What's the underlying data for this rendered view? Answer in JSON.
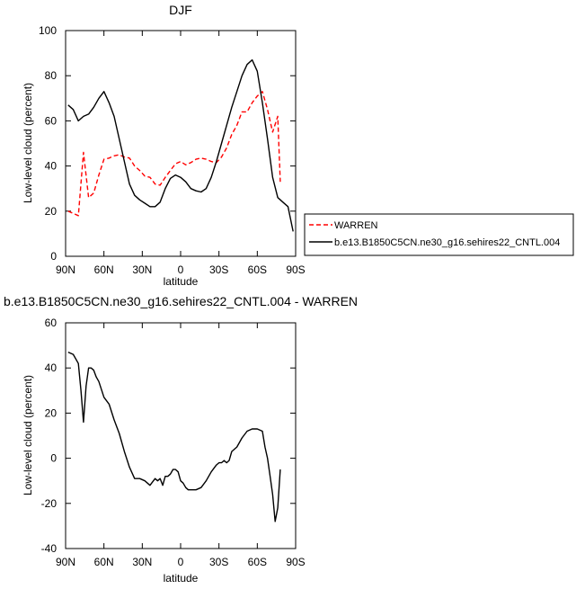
{
  "chart_data": [
    {
      "type": "line",
      "title": "DJF",
      "xlabel": "latitude",
      "ylabel": "Low-level cloud (percent)",
      "xlim": [
        90,
        -90
      ],
      "ylim": [
        0,
        100
      ],
      "x_ticks": [
        90,
        60,
        30,
        0,
        -30,
        -60,
        -90
      ],
      "x_tick_labels": [
        "90N",
        "60N",
        "30N",
        "0",
        "30S",
        "60S",
        "90S"
      ],
      "y_ticks": [
        0,
        20,
        40,
        60,
        80,
        100
      ],
      "y_tick_labels": [
        "0",
        "20",
        "40",
        "60",
        "80",
        "100"
      ],
      "grid": false,
      "legend_position": "right of plot",
      "series": [
        {
          "name": "WARREN",
          "color": "#ff0000",
          "dash": "dashed",
          "x": [
            88,
            84,
            80,
            76,
            72,
            68,
            64,
            60,
            56,
            52,
            48,
            44,
            40,
            36,
            32,
            28,
            24,
            20,
            16,
            12,
            8,
            4,
            0,
            -4,
            -8,
            -12,
            -16,
            -20,
            -24,
            -28,
            -32,
            -36,
            -40,
            -44,
            -48,
            -52,
            -56,
            -60,
            -64,
            -68,
            -72,
            -76,
            -78
          ],
          "values": [
            20,
            19,
            18,
            46,
            26,
            28,
            36,
            43,
            43.5,
            44.5,
            45,
            44,
            43.5,
            40,
            38,
            35.5,
            35,
            32,
            31.5,
            35,
            38,
            41,
            42,
            40.5,
            41.5,
            43,
            43.5,
            43,
            42,
            41.5,
            44,
            48,
            54,
            58,
            64,
            64,
            68,
            71,
            73,
            65,
            55,
            62,
            33
          ]
        },
        {
          "name": "b.e13.B1850C5CN.ne30_g16.sehires22_CNTL.004",
          "color": "#000000",
          "dash": "solid",
          "x": [
            88,
            84,
            80,
            76,
            72,
            68,
            64,
            60,
            56,
            52,
            48,
            44,
            40,
            36,
            32,
            28,
            24,
            20,
            16,
            12,
            8,
            4,
            0,
            -4,
            -8,
            -12,
            -16,
            -20,
            -24,
            -28,
            -32,
            -36,
            -40,
            -44,
            -48,
            -52,
            -56,
            -60,
            -64,
            -68,
            -72,
            -76,
            -80,
            -84,
            -88
          ],
          "values": [
            67,
            65,
            60,
            62,
            63,
            66,
            70,
            73,
            68,
            62,
            52,
            42,
            32,
            27,
            25,
            23.5,
            22,
            22,
            24,
            30,
            34.5,
            36,
            35,
            33,
            30,
            29,
            28.5,
            30,
            35,
            42,
            50,
            58,
            66,
            73,
            80,
            85,
            87,
            82,
            68,
            52,
            35,
            26,
            24,
            22,
            11
          ]
        }
      ]
    },
    {
      "type": "line",
      "title": "b.e13.B1850C5CN.ne30_g16.sehires22_CNTL.004 - WARREN",
      "xlabel": "latitude",
      "ylabel": "Low-level cloud (percent)",
      "xlim": [
        90,
        -90
      ],
      "ylim": [
        -40,
        60
      ],
      "x_ticks": [
        90,
        60,
        30,
        0,
        -30,
        -60,
        -90
      ],
      "x_tick_labels": [
        "90N",
        "60N",
        "30N",
        "0",
        "30S",
        "60S",
        "90S"
      ],
      "y_ticks": [
        -40,
        -20,
        0,
        20,
        40,
        60
      ],
      "y_tick_labels": [
        "-40",
        "-20",
        "0",
        "20",
        "40",
        "60"
      ],
      "grid": false,
      "series": [
        {
          "color": "#000000",
          "dash": "solid",
          "x": [
            88,
            84,
            80,
            78,
            76,
            74,
            72,
            70,
            68,
            66,
            64,
            60,
            56,
            52,
            48,
            44,
            40,
            36,
            32,
            28,
            24,
            20,
            18,
            16,
            14,
            12,
            10,
            8,
            6,
            4,
            2,
            0,
            -2,
            -4,
            -6,
            -8,
            -12,
            -16,
            -20,
            -24,
            -28,
            -30,
            -32,
            -34,
            -36,
            -38,
            -40,
            -44,
            -48,
            -52,
            -56,
            -60,
            -64,
            -66,
            -68,
            -70,
            -72,
            -74,
            -76,
            -78
          ],
          "values": [
            47,
            46,
            42,
            30,
            16,
            32,
            40,
            40,
            39,
            36,
            34,
            27,
            24,
            17,
            11,
            3,
            -4,
            -9,
            -9,
            -10,
            -12,
            -9,
            -10,
            -9,
            -12,
            -8,
            -8,
            -7,
            -5,
            -5,
            -6,
            -10,
            -11,
            -13,
            -14,
            -14,
            -14,
            -13,
            -10,
            -6,
            -3,
            -2,
            -2,
            -1,
            -2,
            -1,
            3,
            5,
            9,
            12,
            13,
            13,
            12,
            5,
            0,
            -8,
            -16,
            -28,
            -22,
            -5
          ]
        }
      ]
    }
  ]
}
